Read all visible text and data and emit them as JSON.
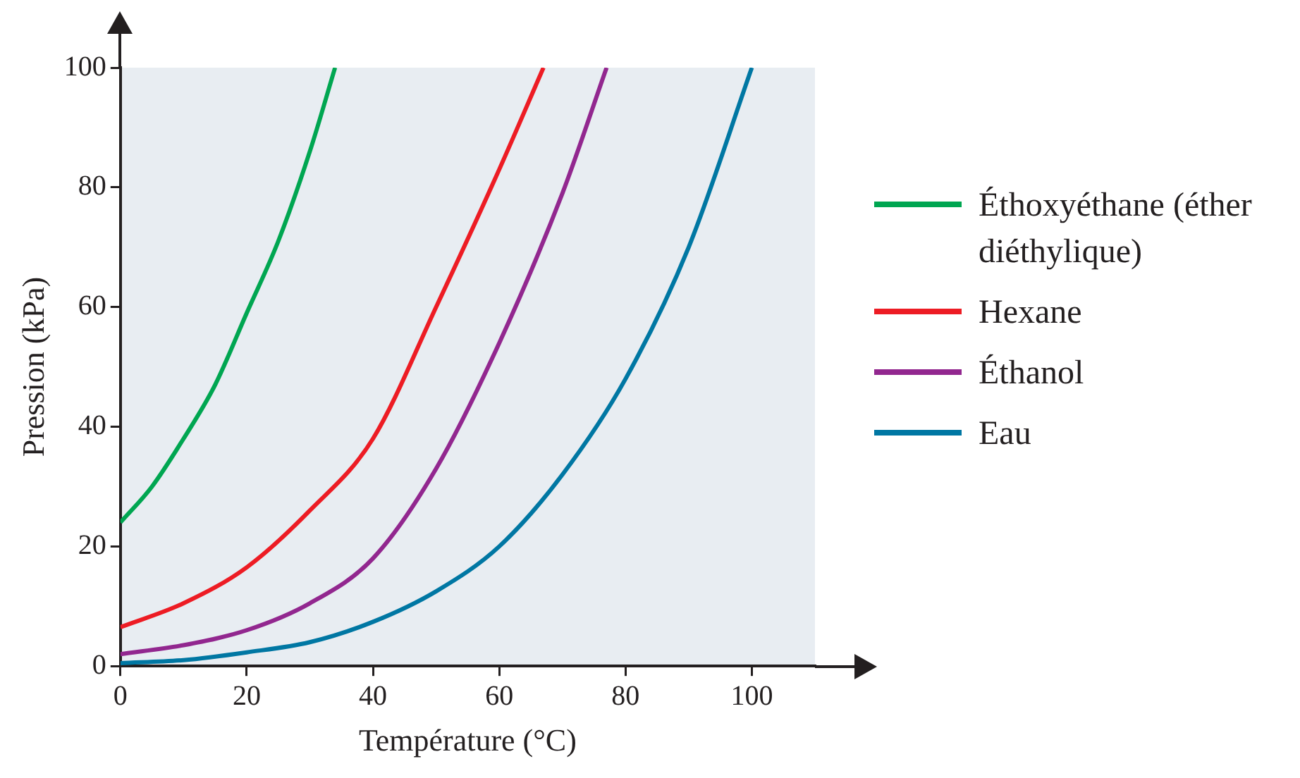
{
  "chart_data": {
    "type": "line",
    "xlabel": "Température (°C)",
    "ylabel": "Pression (kPa)",
    "xlim": [
      0,
      110
    ],
    "ylim": [
      0,
      100
    ],
    "xticks": [
      0,
      20,
      40,
      60,
      80,
      100
    ],
    "yticks": [
      0,
      20,
      40,
      60,
      80,
      100
    ],
    "grid": false,
    "legend": "right",
    "series": [
      {
        "name": "Éthoxyéthane (éther diéthylique)",
        "color": "#00a651",
        "x": [
          0,
          5,
          10,
          15,
          20,
          25,
          30,
          34
        ],
        "values": [
          24,
          30,
          38,
          47,
          59,
          71,
          86,
          100
        ]
      },
      {
        "name": "Hexane",
        "color": "#ed1c24",
        "x": [
          0,
          10,
          20,
          30,
          40,
          50,
          60,
          67
        ],
        "values": [
          6.5,
          10.5,
          16.5,
          26,
          38,
          60,
          83,
          100
        ]
      },
      {
        "name": "Éthanol",
        "color": "#92278f",
        "x": [
          0,
          10,
          20,
          30,
          40,
          50,
          60,
          70,
          77
        ],
        "values": [
          2,
          3.5,
          6,
          10.5,
          18,
          33,
          54,
          79,
          100
        ]
      },
      {
        "name": "Eau",
        "color": "#0077a3",
        "x": [
          0,
          10,
          20,
          30,
          40,
          50,
          60,
          70,
          80,
          90,
          100
        ],
        "values": [
          0.5,
          1,
          2.3,
          4,
          7.4,
          12.5,
          20,
          32,
          48,
          70,
          100
        ]
      }
    ]
  }
}
